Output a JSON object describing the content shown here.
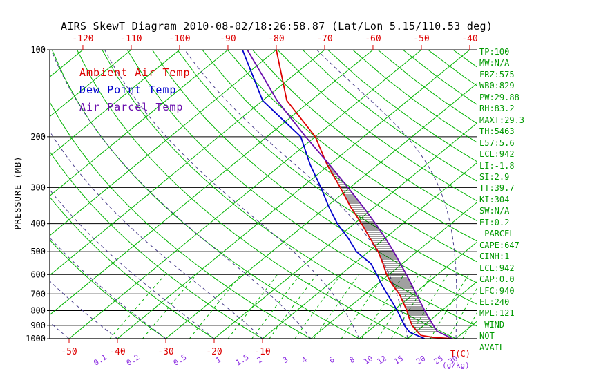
{
  "title": "AIRS SkewT Diagram 2010-08-02/18:26:58.87 (Lat/Lon 5.15/110.53 deg)",
  "axes": {
    "pressure_label": "PRESSURE (MB)"
  },
  "legend": {
    "items": [
      {
        "name": "ambient",
        "label": "Ambient Air Temp",
        "color": "#dd0000"
      },
      {
        "name": "dewpoint",
        "label": "Dew Point Temp",
        "color": "#0000cd"
      },
      {
        "name": "parcel",
        "label": "Air Parcel Temp",
        "color": "#6a0dad"
      }
    ]
  },
  "stats": [
    "TP:100",
    "MW:N/A",
    "FRZ:575",
    "WB0:829",
    "PW:29.88",
    "RH:83.2",
    "MAXT:29.3",
    "TH:5463",
    "L57:5.6",
    "LCL:942",
    "LI:-1.8",
    "SI:2.9",
    "TT:39.7",
    "KI:304",
    "SW:N/A",
    "EI:0.2",
    "-PARCEL-",
    "CAPE:647",
    "CINH:1",
    "LCL:942",
    "CAP:0.0",
    "LFC:940",
    "EL:240",
    "MPL:121",
    "-WIND-",
    "NOT",
    "AVAIL"
  ],
  "chart_data": {
    "type": "skewt",
    "pressure_log_scale": true,
    "pressure_levels": [
      100,
      200,
      300,
      400,
      500,
      600,
      700,
      800,
      900,
      1000
    ],
    "top_temp_ticks": [
      -120,
      -110,
      -100,
      -90,
      -80,
      -70,
      -60,
      -50,
      -40
    ],
    "bottom_temp_ticks": [
      -50,
      -40,
      -30,
      -20,
      -10
    ],
    "temp_unit": "T(C)",
    "mixing_ratios": [
      0.1,
      0.2,
      0.5,
      1,
      1.5,
      2,
      3,
      4,
      6,
      8,
      10,
      12,
      15,
      20,
      25,
      30
    ],
    "mix_unit": "(g/kg)",
    "isotherm_range": [
      -120,
      40
    ],
    "isotherm_step": 10,
    "dry_adiabat_theta_range": [
      -30,
      170
    ],
    "moist_adiabat_surface_temps": [
      -60,
      -50,
      -40,
      -30,
      -20,
      -10,
      0,
      10,
      20,
      30,
      40
    ],
    "cape_hatch_pressure_range": [
      240,
      960
    ],
    "colors": {
      "grid_green": "#00b400",
      "moist_adiabat": "#483d8b",
      "temp_red": "#dd0000",
      "mix_label": "#8a2be2",
      "stats_text": "#009900",
      "axis_black": "#000000"
    },
    "series": [
      {
        "key": "ambient",
        "name": "Ambient Air Temp",
        "color": "#dd0000",
        "points": [
          [
            100,
            -80
          ],
          [
            150,
            -65
          ],
          [
            200,
            -50
          ],
          [
            250,
            -40.5
          ],
          [
            300,
            -32
          ],
          [
            350,
            -25
          ],
          [
            400,
            -18.5
          ],
          [
            450,
            -13
          ],
          [
            500,
            -8
          ],
          [
            550,
            -4
          ],
          [
            600,
            -0.5
          ],
          [
            650,
            3.2
          ],
          [
            700,
            7
          ],
          [
            750,
            10
          ],
          [
            800,
            12.8
          ],
          [
            850,
            15.2
          ],
          [
            900,
            17.6
          ],
          [
            950,
            20.5
          ],
          [
            975,
            22
          ],
          [
            990,
            25
          ],
          [
            1000,
            29.3
          ]
        ]
      },
      {
        "key": "dewpoint",
        "name": "Dew Point Temp",
        "color": "#0000cd",
        "points": [
          [
            100,
            -87
          ],
          [
            150,
            -70
          ],
          [
            200,
            -53
          ],
          [
            250,
            -44
          ],
          [
            300,
            -36
          ],
          [
            350,
            -29.5
          ],
          [
            400,
            -23.5
          ],
          [
            450,
            -17.5
          ],
          [
            500,
            -12.5
          ],
          [
            550,
            -6.5
          ],
          [
            600,
            -2.5
          ],
          [
            650,
            1
          ],
          [
            700,
            4.5
          ],
          [
            750,
            7.8
          ],
          [
            800,
            10.8
          ],
          [
            850,
            13.5
          ],
          [
            900,
            16
          ],
          [
            950,
            18.8
          ],
          [
            1000,
            23.5
          ]
        ]
      },
      {
        "key": "parcel",
        "name": "Air Parcel Temp",
        "color": "#6a0dad",
        "points": [
          [
            100,
            -86
          ],
          [
            150,
            -67
          ],
          [
            200,
            -52
          ],
          [
            250,
            -40
          ],
          [
            300,
            -30.4
          ],
          [
            350,
            -22.4
          ],
          [
            400,
            -15.6
          ],
          [
            450,
            -9.8
          ],
          [
            500,
            -4.8
          ],
          [
            550,
            -0.4
          ],
          [
            600,
            3.6
          ],
          [
            650,
            7.2
          ],
          [
            700,
            10.5
          ],
          [
            750,
            13.6
          ],
          [
            800,
            16.5
          ],
          [
            850,
            19.3
          ],
          [
            900,
            22
          ],
          [
            942,
            24.2
          ],
          [
            1000,
            29.3
          ]
        ]
      }
    ]
  }
}
